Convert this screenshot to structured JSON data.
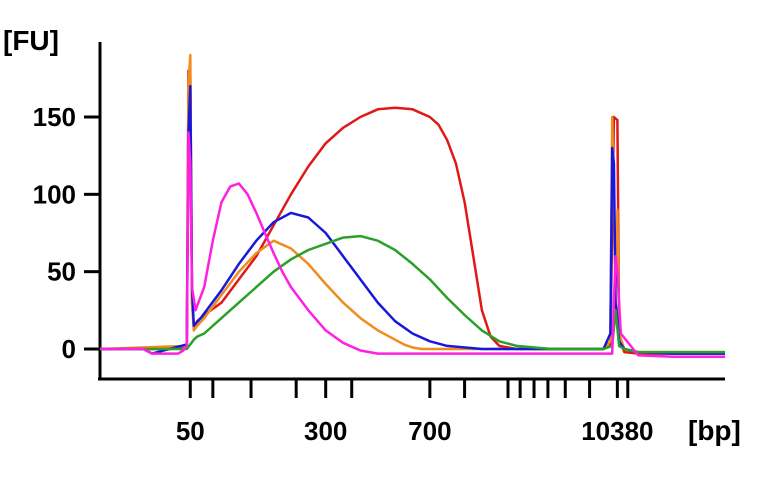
{
  "chart_data": {
    "type": "line",
    "title": "",
    "ylabel": "[FU]",
    "xlabel": "[bp]",
    "ylim": [
      -20,
      200
    ],
    "y_ticks": [
      0,
      50,
      100,
      150
    ],
    "y_tick_labels": [
      "0",
      "50",
      "100",
      "150"
    ],
    "x_scale": "index",
    "x_labeled_ticks": [
      {
        "x": 52,
        "label": "50"
      },
      {
        "x": 130,
        "label": "300"
      },
      {
        "x": 190,
        "label": "700"
      },
      {
        "x": 298,
        "label": "10380"
      }
    ],
    "x_minor_ticks": [
      65,
      87,
      113,
      145,
      210,
      235,
      242,
      250,
      258,
      268,
      282,
      304
    ],
    "xlim": [
      0,
      360
    ],
    "series": [
      {
        "name": "red",
        "color": "#e01818",
        "x": [
          0,
          40,
          50,
          51,
          52,
          53,
          54,
          56,
          60,
          70,
          80,
          90,
          100,
          110,
          120,
          130,
          140,
          150,
          160,
          170,
          180,
          190,
          195,
          200,
          205,
          210,
          215,
          220,
          225,
          230,
          240,
          260,
          280,
          290,
          294,
          296,
          298,
          299,
          300,
          302,
          310,
          330,
          360
        ],
        "y": [
          0,
          0,
          2,
          180,
          175,
          30,
          15,
          18,
          22,
          30,
          45,
          60,
          80,
          100,
          118,
          133,
          143,
          150,
          155,
          156,
          155,
          150,
          145,
          135,
          120,
          95,
          60,
          25,
          8,
          2,
          0,
          0,
          0,
          0,
          2,
          150,
          148,
          10,
          5,
          -2,
          -3,
          -3,
          -3
        ]
      },
      {
        "name": "orange",
        "color": "#f08c1e",
        "x": [
          0,
          50,
          51,
          52,
          53,
          54,
          56,
          60,
          70,
          80,
          90,
          100,
          110,
          120,
          130,
          140,
          150,
          160,
          170,
          175,
          180,
          185,
          190,
          200,
          220,
          260,
          280,
          290,
          294,
          295,
          297,
          298,
          299,
          302,
          310,
          330,
          360
        ],
        "y": [
          0,
          2,
          170,
          190,
          30,
          12,
          15,
          20,
          35,
          50,
          62,
          70,
          65,
          55,
          42,
          30,
          20,
          12,
          6,
          3,
          1,
          0,
          0,
          0,
          0,
          0,
          0,
          0,
          5,
          150,
          40,
          90,
          10,
          0,
          -2,
          -2,
          -2
        ]
      },
      {
        "name": "blue",
        "color": "#1818dc",
        "x": [
          0,
          25,
          30,
          50,
          51,
          52,
          53,
          54,
          58,
          70,
          80,
          90,
          100,
          110,
          120,
          130,
          140,
          150,
          160,
          170,
          180,
          190,
          200,
          220,
          240,
          260,
          280,
          290,
          294,
          295,
          296,
          297,
          298,
          299,
          302,
          310,
          330,
          360
        ],
        "y": [
          0,
          0,
          -3,
          3,
          140,
          170,
          40,
          15,
          20,
          38,
          55,
          70,
          82,
          88,
          85,
          75,
          60,
          45,
          30,
          18,
          10,
          5,
          2,
          0,
          0,
          0,
          0,
          0,
          10,
          130,
          120,
          30,
          20,
          5,
          0,
          -2,
          -3,
          -3
        ]
      },
      {
        "name": "green",
        "color": "#2aa02a",
        "x": [
          0,
          50,
          52,
          54,
          56,
          60,
          70,
          80,
          90,
          100,
          110,
          120,
          130,
          140,
          150,
          160,
          170,
          180,
          190,
          200,
          210,
          220,
          230,
          240,
          260,
          280,
          290,
          295,
          297,
          299,
          302,
          310,
          330,
          360
        ],
        "y": [
          0,
          0,
          3,
          6,
          8,
          10,
          20,
          30,
          40,
          50,
          58,
          64,
          68,
          72,
          73,
          70,
          64,
          55,
          45,
          33,
          22,
          12,
          5,
          2,
          0,
          0,
          0,
          2,
          25,
          2,
          0,
          -2,
          -2,
          -2
        ]
      },
      {
        "name": "magenta",
        "color": "#ff20e0",
        "x": [
          0,
          25,
          30,
          40,
          45,
          48,
          50,
          51,
          52,
          53,
          55,
          60,
          65,
          70,
          75,
          80,
          85,
          90,
          95,
          100,
          105,
          110,
          120,
          130,
          140,
          150,
          160,
          170,
          200,
          240,
          280,
          290,
          295,
          296,
          297,
          298,
          300,
          310,
          330,
          360
        ],
        "y": [
          0,
          0,
          -3,
          -3,
          -3,
          -1,
          2,
          140,
          120,
          40,
          25,
          40,
          70,
          95,
          105,
          107,
          100,
          88,
          75,
          62,
          50,
          40,
          25,
          12,
          4,
          -1,
          -3,
          -3,
          -3,
          -3,
          -3,
          -3,
          -3,
          30,
          60,
          50,
          10,
          -4,
          -5,
          -5
        ]
      }
    ]
  }
}
